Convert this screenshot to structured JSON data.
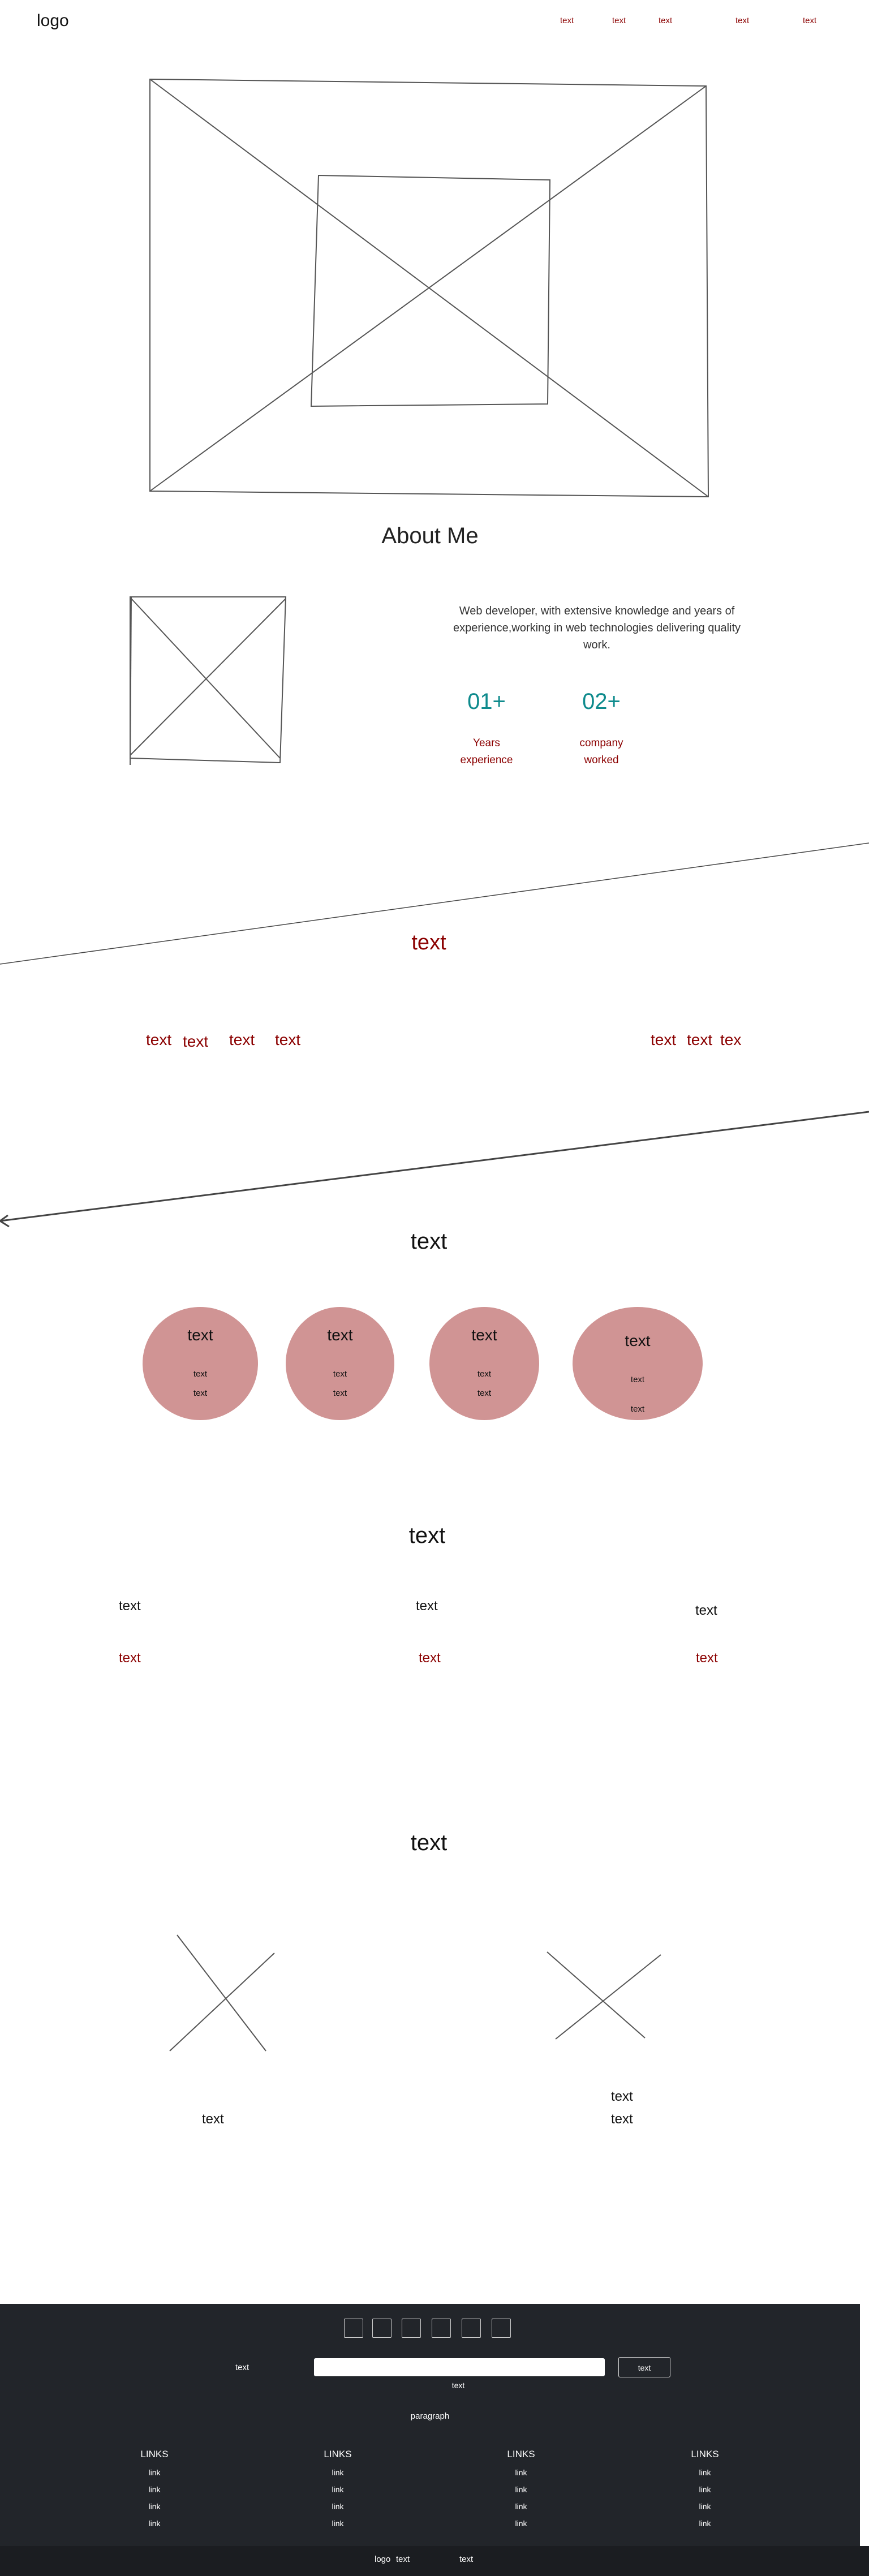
{
  "header": {
    "logo": "logo",
    "nav": [
      "text",
      "text",
      "text",
      "text",
      "text"
    ]
  },
  "about": {
    "title": "About Me",
    "description": "Web developer, with extensive knowledge and years of experience,working in web technologies delivering quality work.",
    "stats": [
      {
        "value": "01+",
        "label_line1": "Years",
        "label_line2": "experience"
      },
      {
        "value": "02+",
        "label_line1": "company",
        "label_line2": "worked"
      }
    ]
  },
  "skills": {
    "title": "text",
    "left_items": [
      "text",
      "text",
      "text",
      "text"
    ],
    "right_items": [
      "text",
      "text",
      "tex"
    ]
  },
  "services": {
    "title": "text",
    "cards": [
      {
        "title": "text",
        "line1": "text",
        "line2": "text"
      },
      {
        "title": "text",
        "line1": "text",
        "line2": "text"
      },
      {
        "title": "text",
        "line1": "text",
        "line2": "text"
      },
      {
        "title": "text",
        "line1": "text",
        "line2": "text"
      }
    ]
  },
  "experience": {
    "title": "text",
    "columns": [
      {
        "heading": "text",
        "sub": "text"
      },
      {
        "heading": "text",
        "sub": "text"
      },
      {
        "heading": "text",
        "sub": "text"
      }
    ]
  },
  "projects": {
    "title": "text",
    "left_caption": "text",
    "right_caption_1": "text",
    "right_caption_2": "text"
  },
  "footer": {
    "subscribe_label": "text",
    "email_placeholder": "",
    "submit_label": "text",
    "under_input": "text",
    "paragraph": "paragraph",
    "link_columns": [
      {
        "heading": "LINKS",
        "links": [
          "link",
          "link",
          "link",
          "link"
        ]
      },
      {
        "heading": "LINKS",
        "links": [
          "link",
          "link",
          "link",
          "link"
        ]
      },
      {
        "heading": "LINKS",
        "links": [
          "link",
          "link",
          "link",
          "link"
        ]
      },
      {
        "heading": "LINKS",
        "links": [
          "link",
          "link",
          "link",
          "link"
        ]
      }
    ],
    "bottom_logo": "logo",
    "bottom_text1": "text",
    "bottom_text2": "text"
  },
  "colors": {
    "accent": "#8b0000",
    "teal": "#0f8b8d",
    "circle": "#d09494",
    "footer": "#22252a"
  }
}
